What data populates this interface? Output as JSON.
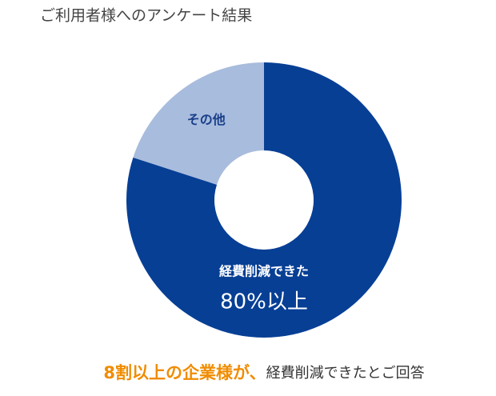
{
  "chart_data": {
    "type": "donut",
    "title": "ご利用者様へのアンケート結果",
    "categories": [
      "経費削減できた",
      "その他"
    ],
    "values": [
      80,
      20
    ],
    "value_labels": [
      "80%以上",
      null
    ],
    "colors": [
      "#073f95",
      "#a8bcdd"
    ],
    "label_colors": [
      "#ffffff",
      "#1a3f8a"
    ],
    "caption": [
      "8割以上の企業様が、",
      "経費削減できたとご回答"
    ],
    "caption_colors": [
      "#f08c00",
      "#333333"
    ]
  }
}
